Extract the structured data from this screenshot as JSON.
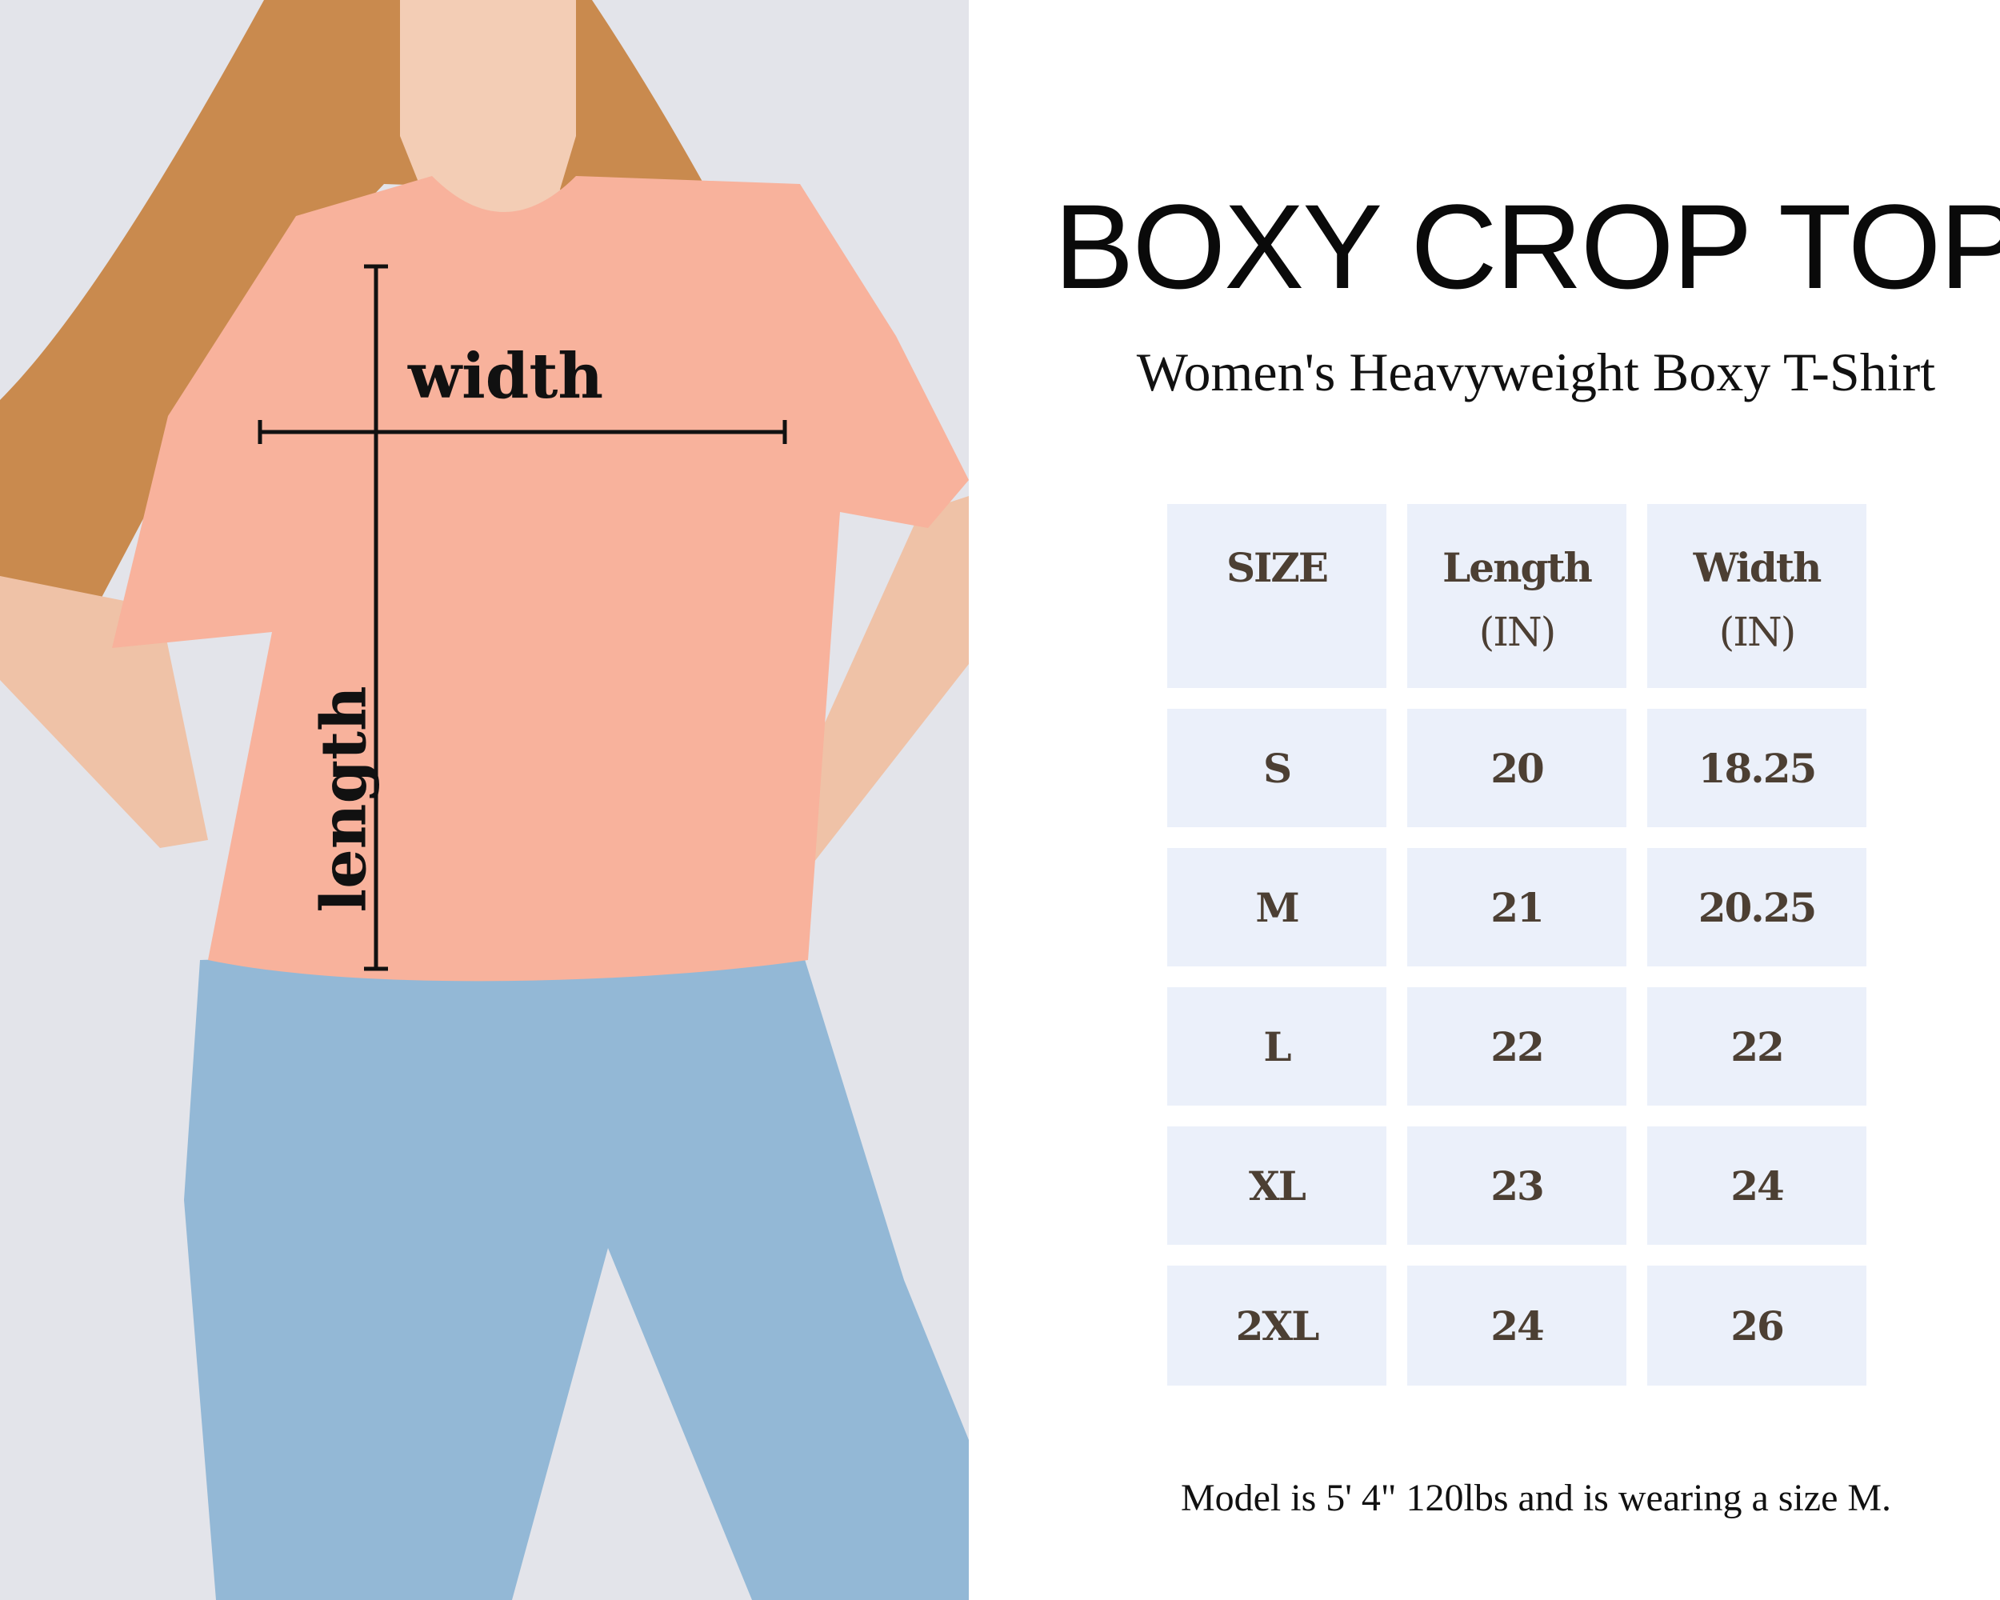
{
  "header": {
    "title": "BOXY CROP TOP",
    "subtitle": "Women's Heavyweight Boxy T-Shirt"
  },
  "photo": {
    "width_label": "width",
    "length_label": "length",
    "colors": {
      "shirt": "#f8b29c",
      "jeans": "#93b8d6",
      "hair": "#c98a4e",
      "background": "#e3e4ea"
    }
  },
  "table": {
    "headers": [
      {
        "line1": "SIZE",
        "line2": ""
      },
      {
        "line1": "Length",
        "line2": "(IN)"
      },
      {
        "line1": "Width",
        "line2": "(IN)"
      }
    ],
    "rows": [
      [
        "S",
        "20",
        "18.25"
      ],
      [
        "M",
        "21",
        "20.25"
      ],
      [
        "L",
        "22",
        "22"
      ],
      [
        "XL",
        "23",
        "24"
      ],
      [
        "2XL",
        "24",
        "26"
      ]
    ],
    "colors": {
      "cell_bg": "#ebf0fa",
      "text": "#4c3f33"
    }
  },
  "footer": {
    "note": "Model is 5' 4\" 120lbs and is wearing a size M."
  }
}
